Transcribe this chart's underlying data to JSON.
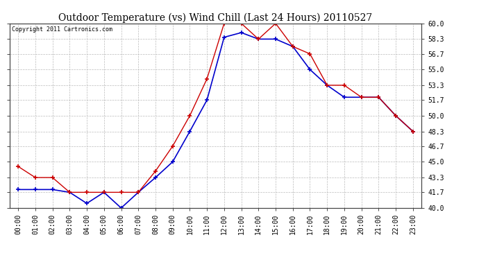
{
  "title": "Outdoor Temperature (vs) Wind Chill (Last 24 Hours) 20110527",
  "copyright": "Copyright 2011 Cartronics.com",
  "x_labels": [
    "00:00",
    "01:00",
    "02:00",
    "03:00",
    "04:00",
    "05:00",
    "06:00",
    "07:00",
    "08:00",
    "09:00",
    "10:00",
    "11:00",
    "12:00",
    "13:00",
    "14:00",
    "15:00",
    "16:00",
    "17:00",
    "18:00",
    "19:00",
    "20:00",
    "21:00",
    "22:00",
    "23:00"
  ],
  "temp": [
    44.5,
    43.3,
    43.3,
    41.7,
    41.7,
    41.7,
    41.7,
    41.7,
    44.0,
    46.7,
    50.0,
    54.0,
    60.0,
    60.0,
    58.3,
    60.0,
    57.5,
    56.7,
    53.3,
    53.3,
    52.0,
    52.0,
    50.0,
    48.3
  ],
  "wind_chill": [
    42.0,
    42.0,
    42.0,
    41.7,
    40.5,
    41.7,
    40.0,
    41.7,
    43.3,
    45.0,
    48.3,
    51.7,
    58.5,
    59.0,
    58.3,
    58.3,
    57.5,
    55.0,
    53.3,
    52.0,
    52.0,
    52.0,
    50.0,
    48.3
  ],
  "ylim": [
    40.0,
    60.0
  ],
  "yticks": [
    40.0,
    41.7,
    43.3,
    45.0,
    46.7,
    48.3,
    50.0,
    51.7,
    53.3,
    55.0,
    56.7,
    58.3,
    60.0
  ],
  "temp_color": "#cc0000",
  "wind_chill_color": "#0000cc",
  "background_color": "#ffffff",
  "plot_bg_color": "#ffffff",
  "grid_color": "#bbbbbb",
  "title_fontsize": 10,
  "tick_fontsize": 7,
  "copyright_fontsize": 6
}
